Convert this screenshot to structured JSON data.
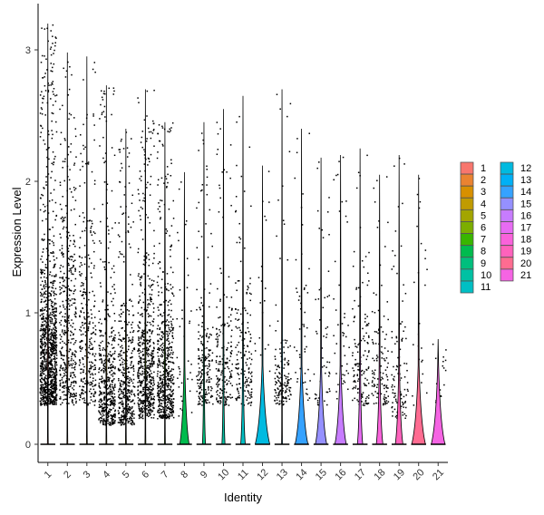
{
  "chart_data": {
    "type": "violin",
    "title": "",
    "xlabel": "Identity",
    "ylabel": "Expression Level",
    "ylim": [
      -0.15,
      3.35
    ],
    "yticks": [
      0,
      1,
      2,
      3
    ],
    "categories": [
      "1",
      "2",
      "3",
      "4",
      "5",
      "6",
      "7",
      "8",
      "9",
      "10",
      "11",
      "12",
      "13",
      "14",
      "15",
      "16",
      "17",
      "18",
      "19",
      "20",
      "21"
    ],
    "zero_fraction": [
      0.2,
      0.45,
      0.6,
      0.35,
      0.35,
      0.35,
      0.35,
      0.9,
      0.75,
      0.75,
      0.8,
      0.97,
      0.35,
      0.95,
      0.93,
      0.93,
      0.82,
      0.85,
      0.87,
      0.96,
      0.96
    ],
    "nonzero_counts": [
      1100,
      420,
      300,
      480,
      420,
      600,
      560,
      40,
      200,
      190,
      170,
      20,
      150,
      50,
      55,
      45,
      140,
      120,
      100,
      25,
      20
    ],
    "nonzero_dense_range": [
      [
        0.3,
        1.4
      ],
      [
        0.3,
        2.0
      ],
      [
        0.3,
        2.0
      ],
      [
        0.15,
        1.0
      ],
      [
        0.15,
        1.0
      ],
      [
        0.2,
        1.2
      ],
      [
        0.2,
        1.1
      ],
      [
        0.2,
        1.6
      ],
      [
        0.3,
        1.0
      ],
      [
        0.3,
        1.2
      ],
      [
        0.3,
        1.4
      ],
      [
        0.5,
        2.0
      ],
      [
        0.3,
        0.9
      ],
      [
        0.3,
        1.8
      ],
      [
        0.3,
        1.6
      ],
      [
        0.3,
        1.6
      ],
      [
        0.3,
        1.1
      ],
      [
        0.3,
        1.0
      ],
      [
        0.2,
        1.0
      ],
      [
        0.3,
        1.8
      ],
      [
        0.3,
        0.8
      ]
    ],
    "max_values": [
      3.2,
      2.98,
      2.95,
      2.73,
      2.4,
      2.7,
      2.45,
      2.07,
      2.45,
      2.55,
      2.65,
      2.12,
      2.7,
      2.4,
      2.18,
      2.2,
      2.25,
      2.05,
      2.2,
      2.05,
      0.8
    ],
    "legend_position": "right",
    "colors": [
      "#F8766D",
      "#EA8331",
      "#D89000",
      "#C09B00",
      "#A3A500",
      "#7CAE00",
      "#39B600",
      "#00BB4E",
      "#00BF7D",
      "#00C1A3",
      "#00BFC4",
      "#00BAE0",
      "#00B0F6",
      "#35A2FF",
      "#9590FF",
      "#C77CFF",
      "#E76BF3",
      "#FA62DB",
      "#FF62BC",
      "#FF6C91",
      "#F564E3"
    ]
  }
}
